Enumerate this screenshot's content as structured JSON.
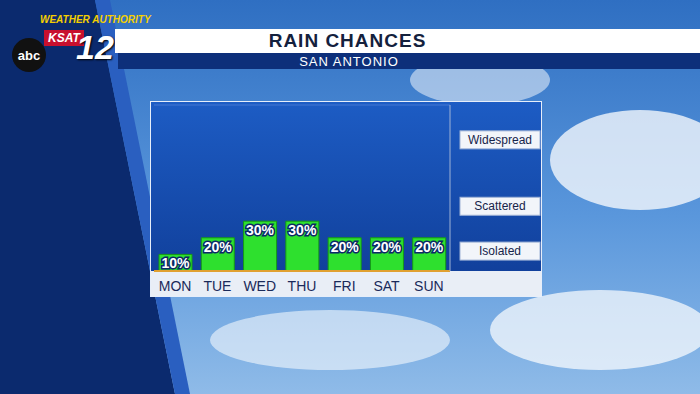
{
  "branding": {
    "tagline": "WEATHER AUTHORITY",
    "station": "KSAT",
    "channel": "12",
    "network": "abc"
  },
  "chart_data": {
    "type": "bar",
    "title": "RAIN CHANCES",
    "subtitle": "SAN ANTONIO",
    "categories": [
      "MON",
      "TUE",
      "WED",
      "THU",
      "FRI",
      "SAT",
      "SUN"
    ],
    "values": [
      10,
      20,
      30,
      30,
      20,
      20,
      20
    ],
    "value_labels": [
      "10%",
      "20%",
      "30%",
      "30%",
      "20%",
      "20%",
      "20%"
    ],
    "data_labels": true,
    "color": "#2ee02e",
    "ylim": [
      0,
      100
    ],
    "yticks": [
      {
        "value": 12,
        "label": "Isolated"
      },
      {
        "value": 39,
        "label": "Scattered"
      },
      {
        "value": 79,
        "label": "Widespread"
      }
    ],
    "grid": true
  }
}
